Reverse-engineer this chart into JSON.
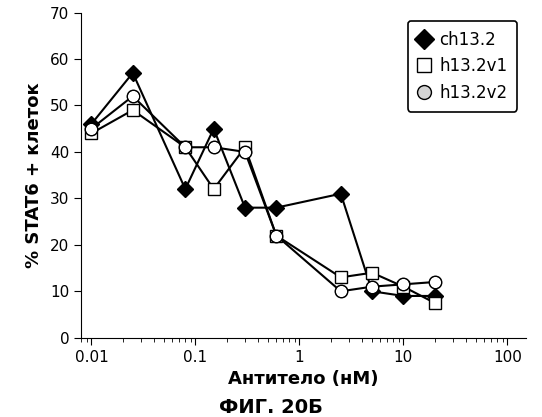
{
  "ch13_2_x": [
    0.01,
    0.025,
    0.08,
    0.15,
    0.3,
    0.6,
    2.5,
    5,
    10,
    20
  ],
  "ch13_2_y": [
    46,
    57,
    32,
    45,
    28,
    28,
    31,
    10,
    9,
    9
  ],
  "h13_2v1_x": [
    0.01,
    0.025,
    0.08,
    0.15,
    0.3,
    0.6,
    2.5,
    5,
    10,
    20
  ],
  "h13_2v1_y": [
    44,
    49,
    41,
    32,
    41,
    22,
    13,
    14,
    11,
    7.5
  ],
  "h13_2v2_x": [
    0.01,
    0.025,
    0.08,
    0.15,
    0.3,
    0.6,
    2.5,
    5,
    10,
    20
  ],
  "h13_2v2_y": [
    45,
    52,
    41,
    41,
    40,
    22,
    10,
    11,
    11.5,
    12
  ],
  "xlabel": "Антитело (нМ)",
  "ylabel": "% STAT6 + клеток",
  "title": "ФИГ. 20Б",
  "ylim": [
    0,
    70
  ],
  "yticks": [
    0,
    10,
    20,
    30,
    40,
    50,
    60,
    70
  ],
  "xticks": [
    0.01,
    0.1,
    1,
    10,
    100
  ],
  "xtick_labels": [
    "0.01",
    "0.1",
    "1",
    "10",
    "100"
  ],
  "legend_labels": [
    "ch13.2",
    "h13.2v1",
    "h13.2v2"
  ],
  "line_color": "#000000",
  "background_color": "#ffffff",
  "marker_size": 8,
  "linewidth": 1.5,
  "tick_fontsize": 11,
  "label_fontsize": 13,
  "legend_fontsize": 12,
  "title_fontsize": 14
}
